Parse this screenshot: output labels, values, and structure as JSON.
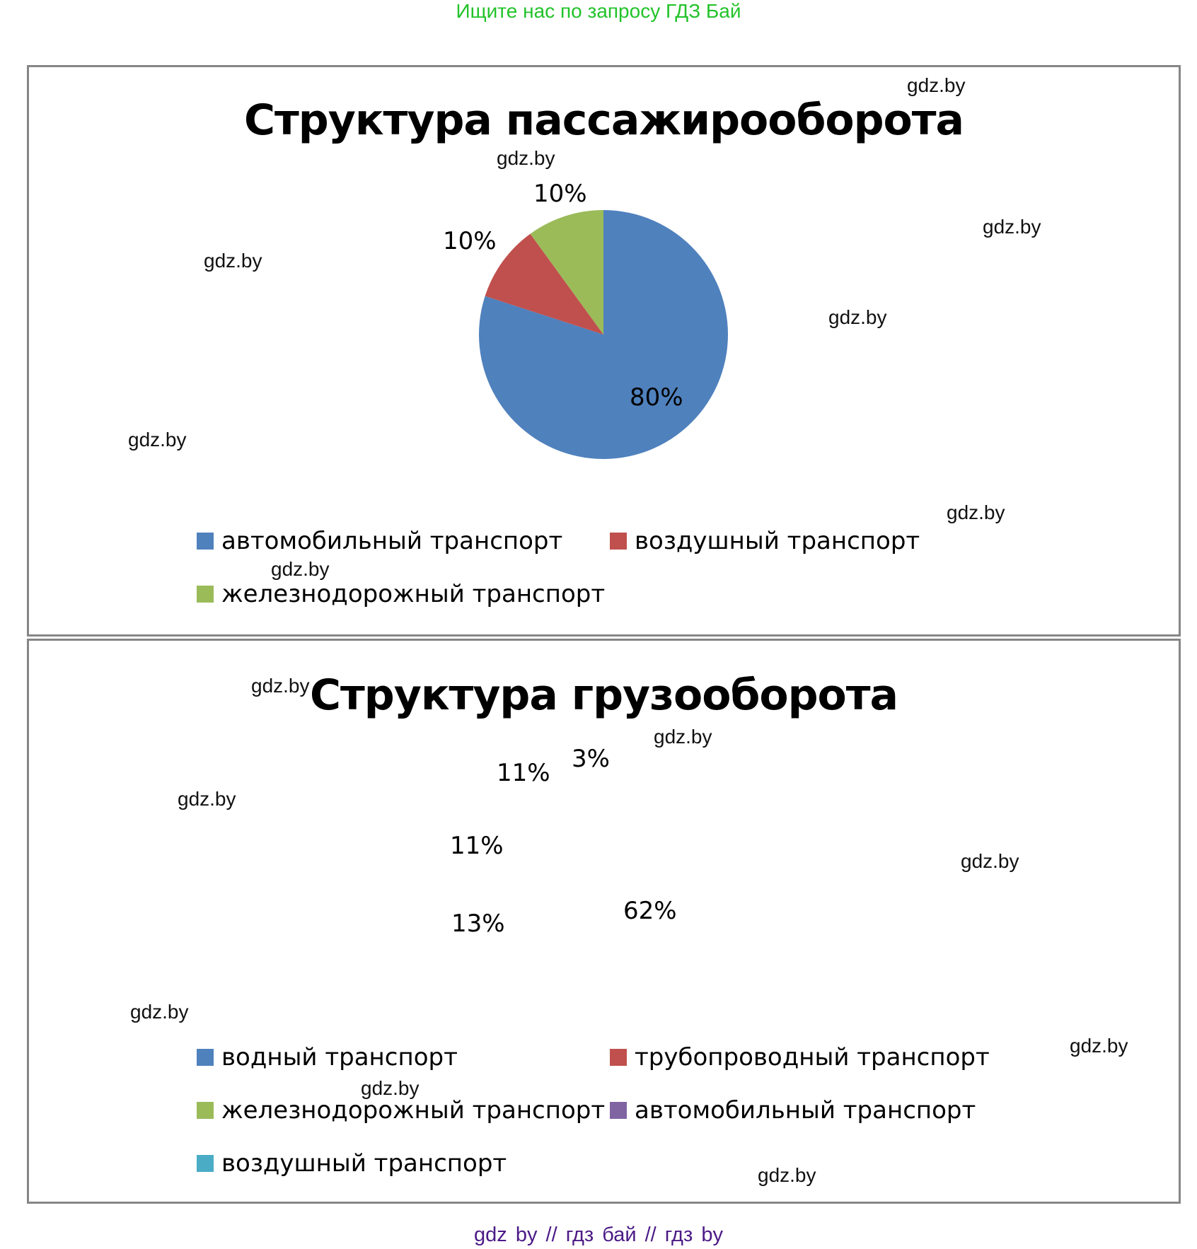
{
  "banner": "Ищите нас по запросу ГДЗ Бай",
  "footer": "gdz by  //  гдз бай  //  гдз by",
  "watermark": "gdz.by",
  "colors": {
    "blue": "#4F81BD",
    "red": "#C0504D",
    "green": "#9BBB59",
    "purple": "#8064A2",
    "cyan": "#4BACC6",
    "frame": "#868686",
    "banner": "#22C32A",
    "footer": "#4B1A86"
  },
  "charts": [
    {
      "title": "Структура пассажирооборота",
      "slices": [
        {
          "label": "автомобильный транспорт",
          "value": 80,
          "display": "80%",
          "color": "#4F81BD"
        },
        {
          "label": "воздушный транспорт",
          "value": 10,
          "display": "10%",
          "color": "#C0504D"
        },
        {
          "label": "железнодорожный транспорт",
          "value": 10,
          "display": "10%",
          "color": "#9BBB59"
        }
      ]
    },
    {
      "title": "Структура грузооборота",
      "slices": [
        {
          "label": "водный транспорт",
          "value": 62,
          "display": "62%",
          "color": "#4F81BD"
        },
        {
          "label": "трубопроводный транспорт",
          "value": 13,
          "display": "13%",
          "color": "#C0504D"
        },
        {
          "label": "железнодорожный транспорт",
          "value": 11,
          "display": "11%",
          "color": "#9BBB59"
        },
        {
          "label": "автомобильный транспорт",
          "value": 11,
          "display": "11%",
          "color": "#8064A2"
        },
        {
          "label": "воздушный транспорт",
          "value": 3,
          "display": "3%",
          "color": "#4BACC6"
        }
      ]
    }
  ],
  "chart_data": [
    {
      "type": "pie",
      "title": "Структура пассажирооборота",
      "categories": [
        "автомобильный транспорт",
        "воздушный транспорт",
        "железнодорожный транспорт"
      ],
      "values": [
        80,
        10,
        10
      ],
      "unit": "%",
      "legend_position": "bottom"
    },
    {
      "type": "pie",
      "title": "Структура грузооборота",
      "categories": [
        "водный транспорт",
        "трубопроводный транспорт",
        "железнодорожный транспорт",
        "автомобильный транспорт",
        "воздушный транспорт"
      ],
      "values": [
        62,
        13,
        11,
        11,
        3
      ],
      "unit": "%",
      "legend_position": "bottom"
    }
  ]
}
